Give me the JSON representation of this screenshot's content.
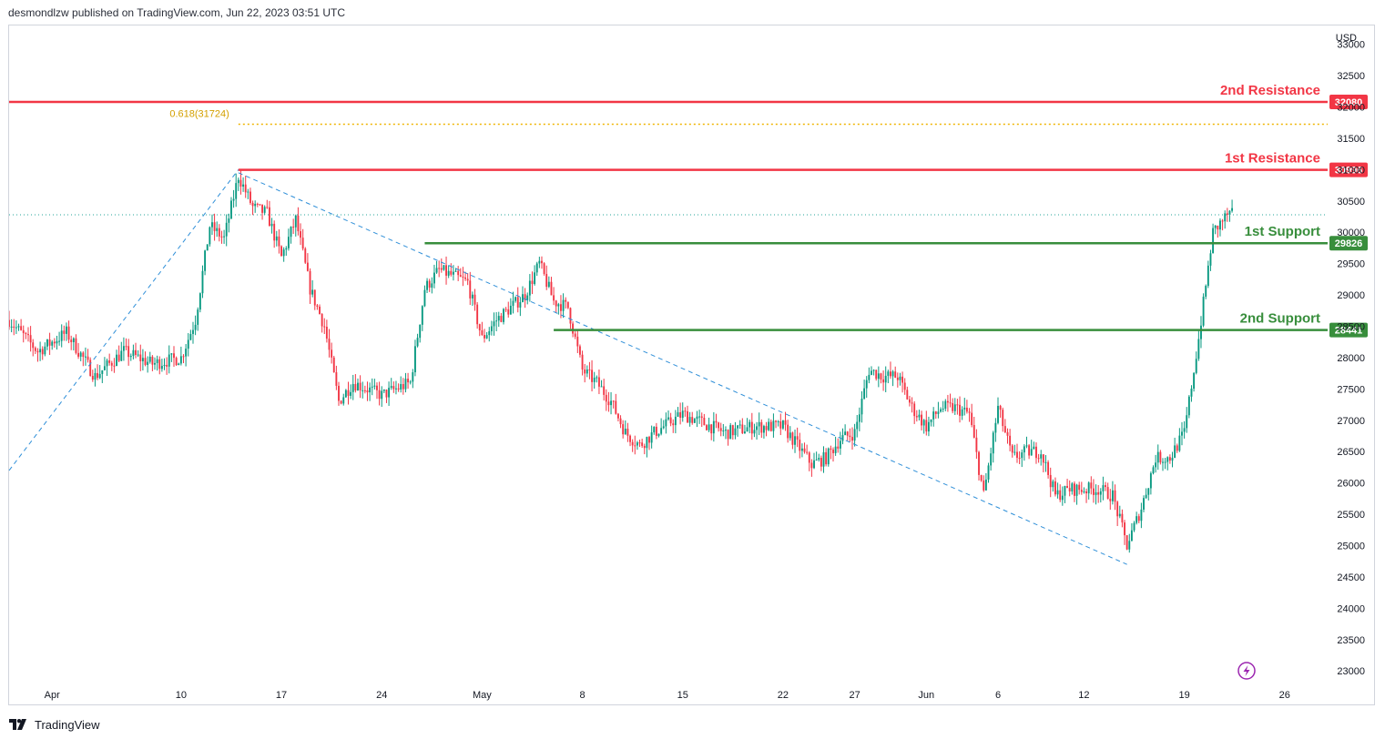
{
  "header": {
    "publish_line": "desmondlzw published on TradingView.com, Jun 22, 2023 03:51 UTC"
  },
  "footer": {
    "brand": "TradingView",
    "logo_icon": "tradingview-logo-icon"
  },
  "chart_data": {
    "type": "candlestick",
    "currency": "USD",
    "y_ticks": [
      23000,
      23500,
      24000,
      24500,
      25000,
      25500,
      26000,
      26500,
      27000,
      27500,
      28000,
      28500,
      29000,
      29500,
      30000,
      30500,
      31000,
      31500,
      32000,
      32500,
      33000
    ],
    "ylim": [
      22800,
      33300
    ],
    "x_ticks": [
      {
        "label": "Apr",
        "date": "2023-04-01"
      },
      {
        "label": "10",
        "date": "2023-04-10"
      },
      {
        "label": "17",
        "date": "2023-04-17"
      },
      {
        "label": "24",
        "date": "2023-04-24"
      },
      {
        "label": "May",
        "date": "2023-05-01"
      },
      {
        "label": "8",
        "date": "2023-05-08"
      },
      {
        "label": "15",
        "date": "2023-05-15"
      },
      {
        "label": "22",
        "date": "2023-05-22"
      },
      {
        "label": "27",
        "date": "2023-05-27"
      },
      {
        "label": "Jun",
        "date": "2023-06-01"
      },
      {
        "label": "6",
        "date": "2023-06-06"
      },
      {
        "label": "12",
        "date": "2023-06-12"
      },
      {
        "label": "19",
        "date": "2023-06-19"
      },
      {
        "label": "26",
        "date": "2023-06-26"
      }
    ],
    "xlim": [
      "2023-03-29",
      "2023-06-29"
    ],
    "colors": {
      "up": "#089981",
      "down": "#f23645",
      "resistance": "#f23645",
      "support": "#388e3c",
      "fib": "#f0b400",
      "trend": "#2f8fd8",
      "last_price": "#26a69a"
    },
    "levels": [
      {
        "name": "2nd Resistance",
        "value": 32080,
        "kind": "resistance",
        "from": "2023-03-29"
      },
      {
        "name": "1st Resistance",
        "value": 30996,
        "kind": "resistance",
        "from": "2023-04-14"
      },
      {
        "name": "1st Support",
        "value": 29826,
        "kind": "support",
        "from": "2023-04-27"
      },
      {
        "name": "2nd Support",
        "value": 28441,
        "kind": "support",
        "from": "2023-05-06"
      }
    ],
    "fib_level": {
      "label": "0.618(31724)",
      "value": 31724,
      "from": "2023-04-14"
    },
    "last_price": 30280,
    "trendlines": [
      {
        "from": [
          "2023-03-29",
          26200
        ],
        "to": [
          "2023-04-14",
          31000
        ]
      },
      {
        "from": [
          "2023-04-14",
          30950
        ],
        "to": [
          "2023-06-15",
          24700
        ]
      }
    ],
    "price_path": [
      [
        "2023-03-29",
        28600
      ],
      [
        "2023-03-31",
        28100
      ],
      [
        "2023-04-02",
        28400
      ],
      [
        "2023-04-04",
        27700
      ],
      [
        "2023-04-06",
        28100
      ],
      [
        "2023-04-08",
        27900
      ],
      [
        "2023-04-10",
        28000
      ],
      [
        "2023-04-11",
        28600
      ],
      [
        "2023-04-12",
        30100
      ],
      [
        "2023-04-13",
        29900
      ],
      [
        "2023-04-14",
        30900
      ],
      [
        "2023-04-15",
        30400
      ],
      [
        "2023-04-16",
        30300
      ],
      [
        "2023-04-17",
        29600
      ],
      [
        "2023-04-18",
        30200
      ],
      [
        "2023-04-19",
        29100
      ],
      [
        "2023-04-20",
        28500
      ],
      [
        "2023-04-21",
        27300
      ],
      [
        "2023-04-22",
        27600
      ],
      [
        "2023-04-24",
        27400
      ],
      [
        "2023-04-25",
        27500
      ],
      [
        "2023-04-26",
        27600
      ],
      [
        "2023-04-27",
        29100
      ],
      [
        "2023-04-28",
        29400
      ],
      [
        "2023-04-29",
        29300
      ],
      [
        "2023-04-30",
        29200
      ],
      [
        "2023-05-01",
        28300
      ],
      [
        "2023-05-02",
        28600
      ],
      [
        "2023-05-03",
        28800
      ],
      [
        "2023-05-04",
        29000
      ],
      [
        "2023-05-05",
        29500
      ],
      [
        "2023-05-06",
        28900
      ],
      [
        "2023-05-07",
        28800
      ],
      [
        "2023-05-08",
        27800
      ],
      [
        "2023-05-09",
        27600
      ],
      [
        "2023-05-10",
        27300
      ],
      [
        "2023-05-11",
        26800
      ],
      [
        "2023-05-12",
        26600
      ],
      [
        "2023-05-13",
        26800
      ],
      [
        "2023-05-15",
        27100
      ],
      [
        "2023-05-16",
        27000
      ],
      [
        "2023-05-18",
        26800
      ],
      [
        "2023-05-20",
        26900
      ],
      [
        "2023-05-22",
        26900
      ],
      [
        "2023-05-24",
        26300
      ],
      [
        "2023-05-25",
        26400
      ],
      [
        "2023-05-26",
        26700
      ],
      [
        "2023-05-27",
        26800
      ],
      [
        "2023-05-28",
        27800
      ],
      [
        "2023-05-29",
        27700
      ],
      [
        "2023-05-30",
        27700
      ],
      [
        "2023-05-31",
        27200
      ],
      [
        "2023-06-01",
        26900
      ],
      [
        "2023-06-02",
        27200
      ],
      [
        "2023-06-03",
        27200
      ],
      [
        "2023-06-04",
        27100
      ],
      [
        "2023-06-05",
        25800
      ],
      [
        "2023-06-06",
        27200
      ],
      [
        "2023-06-07",
        26400
      ],
      [
        "2023-06-08",
        26500
      ],
      [
        "2023-06-09",
        26500
      ],
      [
        "2023-06-10",
        25800
      ],
      [
        "2023-06-11",
        25900
      ],
      [
        "2023-06-12",
        25900
      ],
      [
        "2023-06-13",
        25900
      ],
      [
        "2023-06-14",
        25800
      ],
      [
        "2023-06-15",
        25000
      ],
      [
        "2023-06-16",
        25600
      ],
      [
        "2023-06-17",
        26400
      ],
      [
        "2023-06-18",
        26400
      ],
      [
        "2023-06-19",
        26800
      ],
      [
        "2023-06-20",
        28300
      ],
      [
        "2023-06-21",
        30000
      ],
      [
        "2023-06-22",
        30280
      ]
    ]
  }
}
